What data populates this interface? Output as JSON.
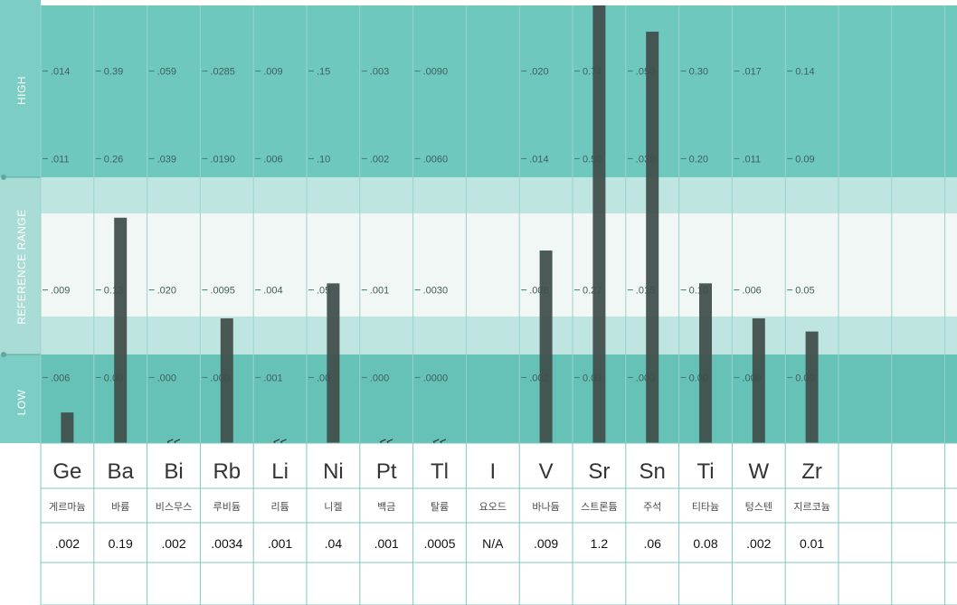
{
  "chart_data": {
    "type": "bar",
    "side_labels": {
      "high": "HIGH",
      "reference": "REFERENCE RANGE",
      "low": "LOW"
    },
    "level_fractions": {
      "high": 0.85,
      "upper_ref": 0.65,
      "lower_ref": 0.35,
      "low": 0.15
    },
    "elements": [
      {
        "symbol": "Ge",
        "korean": "게르마늄",
        "result": ".002",
        "flag": "",
        "levels": [
          ".014",
          ".011",
          ".009",
          ".006"
        ],
        "bar_fraction": 0.07
      },
      {
        "symbol": "Ba",
        "korean": "바륨",
        "result": "0.19",
        "flag": "",
        "levels": [
          "0.39",
          "0.26",
          "0.13",
          "0.00"
        ],
        "bar_fraction": 0.515
      },
      {
        "symbol": "Bi",
        "korean": "비스무스",
        "result": ".002",
        "flag": "<<",
        "levels": [
          ".059",
          ".039",
          ".020",
          ".000"
        ],
        "bar_fraction": 0
      },
      {
        "symbol": "Rb",
        "korean": "루비듐",
        "result": ".0034",
        "flag": "",
        "levels": [
          ".0285",
          ".0190",
          ".0095",
          ".000"
        ],
        "bar_fraction": 0.285
      },
      {
        "symbol": "Li",
        "korean": "리튬",
        "result": ".001",
        "flag": "<<",
        "levels": [
          ".009",
          ".006",
          ".004",
          ".001"
        ],
        "bar_fraction": 0
      },
      {
        "symbol": "Ni",
        "korean": "니켈",
        "result": ".04",
        "flag": "",
        "levels": [
          ".15",
          ".10",
          ".05",
          ".00"
        ],
        "bar_fraction": 0.365
      },
      {
        "symbol": "Pt",
        "korean": "백금",
        "result": ".001",
        "flag": "<<",
        "levels": [
          ".003",
          ".002",
          ".001",
          ".000"
        ],
        "bar_fraction": 0
      },
      {
        "symbol": "Tl",
        "korean": "탈륨",
        "result": ".0005",
        "flag": "<<",
        "levels": [
          ".0090",
          ".0060",
          ".0030",
          ".0000"
        ],
        "bar_fraction": 0
      },
      {
        "symbol": "I",
        "korean": "요오드",
        "result": "N/A",
        "flag": "",
        "levels": [
          "",
          "",
          "",
          ""
        ],
        "bar_fraction": 0
      },
      {
        "symbol": "V",
        "korean": "바나듐",
        "result": ".009",
        "flag": "",
        "levels": [
          ".020",
          ".014",
          ".008",
          ".002"
        ],
        "bar_fraction": 0.44
      },
      {
        "symbol": "Sr",
        "korean": "스트론튬",
        "result": "1.2",
        "flag": "",
        "levels": [
          "0.74",
          "0.50",
          "0.27",
          "0.03"
        ],
        "bar_fraction": 1.0
      },
      {
        "symbol": "Sn",
        "korean": "주석",
        "result": ".06",
        "flag": "",
        "levels": [
          ".050",
          ".030",
          ".015",
          ".000"
        ],
        "bar_fraction": 0.94
      },
      {
        "symbol": "Ti",
        "korean": "티타늄",
        "result": "0.08",
        "flag": "",
        "levels": [
          "0.30",
          "0.20",
          "0.10",
          "0.00"
        ],
        "bar_fraction": 0.365
      },
      {
        "symbol": "W",
        "korean": "텅스텐",
        "result": ".002",
        "flag": "",
        "levels": [
          ".017",
          ".011",
          ".006",
          ".000"
        ],
        "bar_fraction": 0.285
      },
      {
        "symbol": "Zr",
        "korean": "지르코늄",
        "result": "0.01",
        "flag": "",
        "levels": [
          "0.14",
          "0.09",
          "0.05",
          "0.00"
        ],
        "bar_fraction": 0.255
      }
    ],
    "empty_columns": 2,
    "colors": {
      "high": "#6ec8be",
      "reference": "#bfe5e0",
      "mid": "#f1f7f4",
      "low": "#66c1b7",
      "bar": "#3f4d4a"
    },
    "grid": true,
    "legend": "none"
  }
}
